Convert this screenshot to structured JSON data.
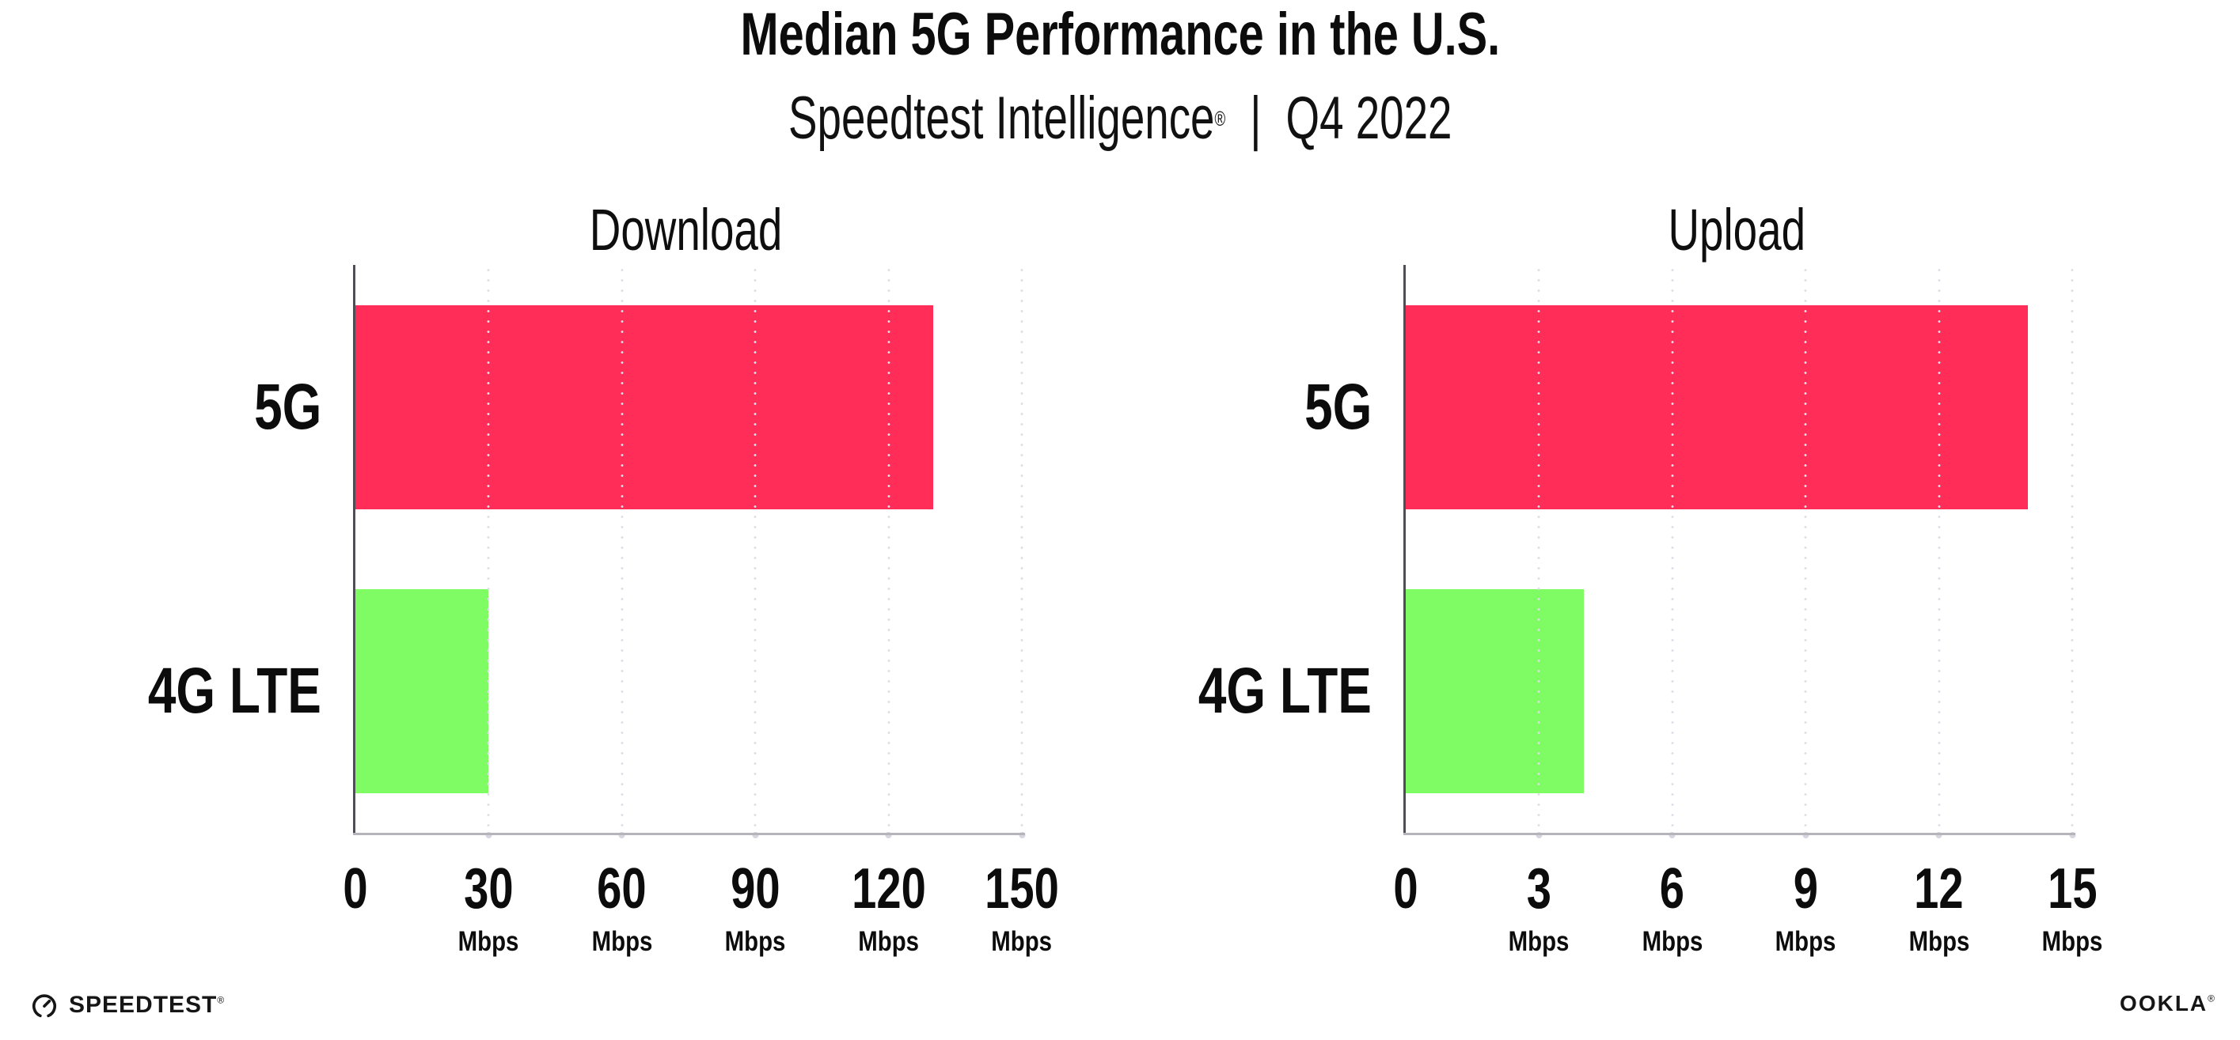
{
  "header": {
    "title": "Median 5G Performance in the U.S.",
    "subtitle_brand": "Speedtest Intelligence",
    "reg_mark": "®",
    "subtitle_separator": "|",
    "subtitle_period": "Q4 2022"
  },
  "chart_data": [
    {
      "type": "bar",
      "orientation": "horizontal",
      "title": "Download",
      "categories": [
        "5G",
        "4G LTE"
      ],
      "values": [
        130,
        30
      ],
      "unit": "Mbps",
      "xlim": [
        0,
        150
      ],
      "xticks": [
        0,
        30,
        60,
        90,
        120,
        150
      ],
      "bar_colors": [
        "#ff2d57",
        "#7ffb63"
      ],
      "grid": "dotted-vertical",
      "legend": "none"
    },
    {
      "type": "bar",
      "orientation": "horizontal",
      "title": "Upload",
      "categories": [
        "5G",
        "4G LTE"
      ],
      "values": [
        14,
        4
      ],
      "unit": "Mbps",
      "xlim": [
        0,
        15
      ],
      "xticks": [
        0,
        3,
        6,
        9,
        12,
        15
      ],
      "bar_colors": [
        "#ff2d57",
        "#7ffb63"
      ],
      "grid": "dotted-vertical",
      "legend": "none"
    }
  ],
  "footer": {
    "speedtest_label": "SPEEDTEST",
    "speedtest_mark": "®",
    "ookla_label": "OOKLA",
    "ookla_mark": "®"
  },
  "colors": {
    "bar_5g": "#ff2d57",
    "bar_4g_lte": "#7ffb63",
    "gridline": "#dddde8",
    "x_axis": "#b4b4ba",
    "y_axis": "#4e4e56",
    "text": "#0c0c0c"
  }
}
